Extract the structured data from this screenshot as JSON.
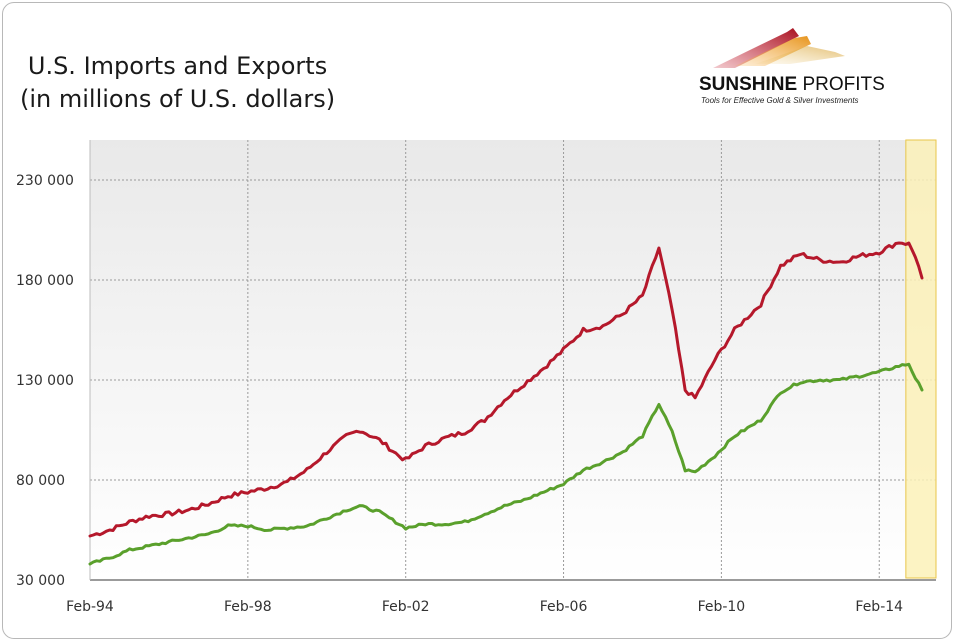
{
  "title_line1": "U.S. Imports and Exports",
  "title_line2": "(in millions of U.S. dollars)",
  "logo": {
    "brand_bold": "SUNSHINE",
    "brand_thin": "PROFITS",
    "tagline": "Tools for Effective Gold & Silver Investments"
  },
  "colors": {
    "imports": "#b5182b",
    "exports": "#5aa02c",
    "highlight_fill": "#fbf1b8",
    "highlight_border": "#e8c64a"
  },
  "chart_data": {
    "type": "line",
    "title": "U.S. Imports and Exports (in millions of U.S. dollars)",
    "xlabel": "",
    "ylabel": "",
    "x_ticks": [
      "Feb-94",
      "Feb-98",
      "Feb-02",
      "Feb-06",
      "Feb-10",
      "Feb-14"
    ],
    "y_ticks": [
      "30 000",
      "80 000",
      "130 000",
      "180 000",
      "230 000"
    ],
    "y_tick_values": [
      30000,
      80000,
      130000,
      180000,
      230000
    ],
    "ylim": [
      30000,
      250000
    ],
    "xlim": [
      "1994-02",
      "2015-03"
    ],
    "grid": true,
    "legend": "none",
    "highlight_region": [
      "2014-11",
      "2015-03"
    ],
    "series": [
      {
        "key": "imports",
        "points": [
          [
            "1994-02",
            52000
          ],
          [
            "1994-08",
            55000
          ],
          [
            "1995-02",
            59000
          ],
          [
            "1995-08",
            62000
          ],
          [
            "1996-02",
            63000
          ],
          [
            "1996-08",
            65000
          ],
          [
            "1997-02",
            68000
          ],
          [
            "1997-08",
            72000
          ],
          [
            "1998-02",
            74000
          ],
          [
            "1998-08",
            76000
          ],
          [
            "1999-02",
            79000
          ],
          [
            "1999-08",
            85000
          ],
          [
            "2000-02",
            94000
          ],
          [
            "2000-08",
            102000
          ],
          [
            "2000-12",
            105000
          ],
          [
            "2001-06",
            100000
          ],
          [
            "2001-12",
            92000
          ],
          [
            "2002-02",
            90000
          ],
          [
            "2002-08",
            97000
          ],
          [
            "2003-02",
            101000
          ],
          [
            "2003-08",
            104000
          ],
          [
            "2004-02",
            110000
          ],
          [
            "2004-08",
            120000
          ],
          [
            "2005-02",
            128000
          ],
          [
            "2005-08",
            136000
          ],
          [
            "2006-02",
            145000
          ],
          [
            "2006-08",
            155000
          ],
          [
            "2007-02",
            157000
          ],
          [
            "2007-08",
            163000
          ],
          [
            "2008-02",
            172000
          ],
          [
            "2008-07",
            196000
          ],
          [
            "2008-11",
            165000
          ],
          [
            "2009-03",
            125000
          ],
          [
            "2009-06",
            121000
          ],
          [
            "2009-12",
            140000
          ],
          [
            "2010-06",
            155000
          ],
          [
            "2011-02",
            168000
          ],
          [
            "2011-08",
            187000
          ],
          [
            "2012-02",
            193000
          ],
          [
            "2012-08",
            190000
          ],
          [
            "2013-02",
            189000
          ],
          [
            "2013-08",
            192000
          ],
          [
            "2014-02",
            194000
          ],
          [
            "2014-08",
            199000
          ],
          [
            "2014-11",
            198000
          ],
          [
            "2015-01",
            192000
          ],
          [
            "2015-03",
            181000
          ]
        ]
      },
      {
        "key": "exports",
        "points": [
          [
            "1994-02",
            38000
          ],
          [
            "1994-08",
            41000
          ],
          [
            "1995-02",
            45000
          ],
          [
            "1995-08",
            47000
          ],
          [
            "1996-02",
            49000
          ],
          [
            "1996-08",
            51000
          ],
          [
            "1997-02",
            53000
          ],
          [
            "1997-08",
            57000
          ],
          [
            "1998-02",
            57000
          ],
          [
            "1998-08",
            55000
          ],
          [
            "1999-02",
            56000
          ],
          [
            "1999-08",
            57000
          ],
          [
            "2000-02",
            61000
          ],
          [
            "2000-08",
            65000
          ],
          [
            "2000-12",
            67000
          ],
          [
            "2001-06",
            64000
          ],
          [
            "2001-12",
            58000
          ],
          [
            "2002-02",
            56000
          ],
          [
            "2002-08",
            58000
          ],
          [
            "2003-02",
            58000
          ],
          [
            "2003-08",
            59000
          ],
          [
            "2004-02",
            63000
          ],
          [
            "2004-08",
            67000
          ],
          [
            "2005-02",
            70000
          ],
          [
            "2005-08",
            74000
          ],
          [
            "2006-02",
            78000
          ],
          [
            "2006-08",
            85000
          ],
          [
            "2007-02",
            89000
          ],
          [
            "2007-08",
            94000
          ],
          [
            "2008-02",
            102000
          ],
          [
            "2008-07",
            118000
          ],
          [
            "2008-11",
            104000
          ],
          [
            "2009-03",
            85000
          ],
          [
            "2009-06",
            84000
          ],
          [
            "2009-12",
            92000
          ],
          [
            "2010-06",
            102000
          ],
          [
            "2011-02",
            110000
          ],
          [
            "2011-08",
            124000
          ],
          [
            "2012-02",
            129000
          ],
          [
            "2012-08",
            130000
          ],
          [
            "2013-02",
            130000
          ],
          [
            "2013-08",
            132000
          ],
          [
            "2014-02",
            134000
          ],
          [
            "2014-08",
            137000
          ],
          [
            "2014-11",
            138000
          ],
          [
            "2015-01",
            131000
          ],
          [
            "2015-03",
            125000
          ]
        ]
      }
    ]
  }
}
